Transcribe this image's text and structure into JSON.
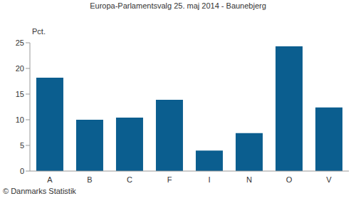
{
  "chart_data": {
    "type": "bar",
    "title": "Europa-Parlamentsvalg 25. maj 2014 - Baunebjerg",
    "y_label": "Pct.",
    "annotation": "© Danmarks Statistik",
    "categories": [
      "A",
      "B",
      "C",
      "F",
      "I",
      "N",
      "O",
      "V"
    ],
    "values": [
      18.2,
      10.0,
      10.4,
      13.9,
      4.0,
      7.4,
      24.3,
      12.4
    ],
    "color": "#0b5e8f",
    "ylim": [
      0,
      25
    ],
    "yticks": [
      0,
      5,
      10,
      15,
      20,
      25
    ],
    "grid": false
  }
}
